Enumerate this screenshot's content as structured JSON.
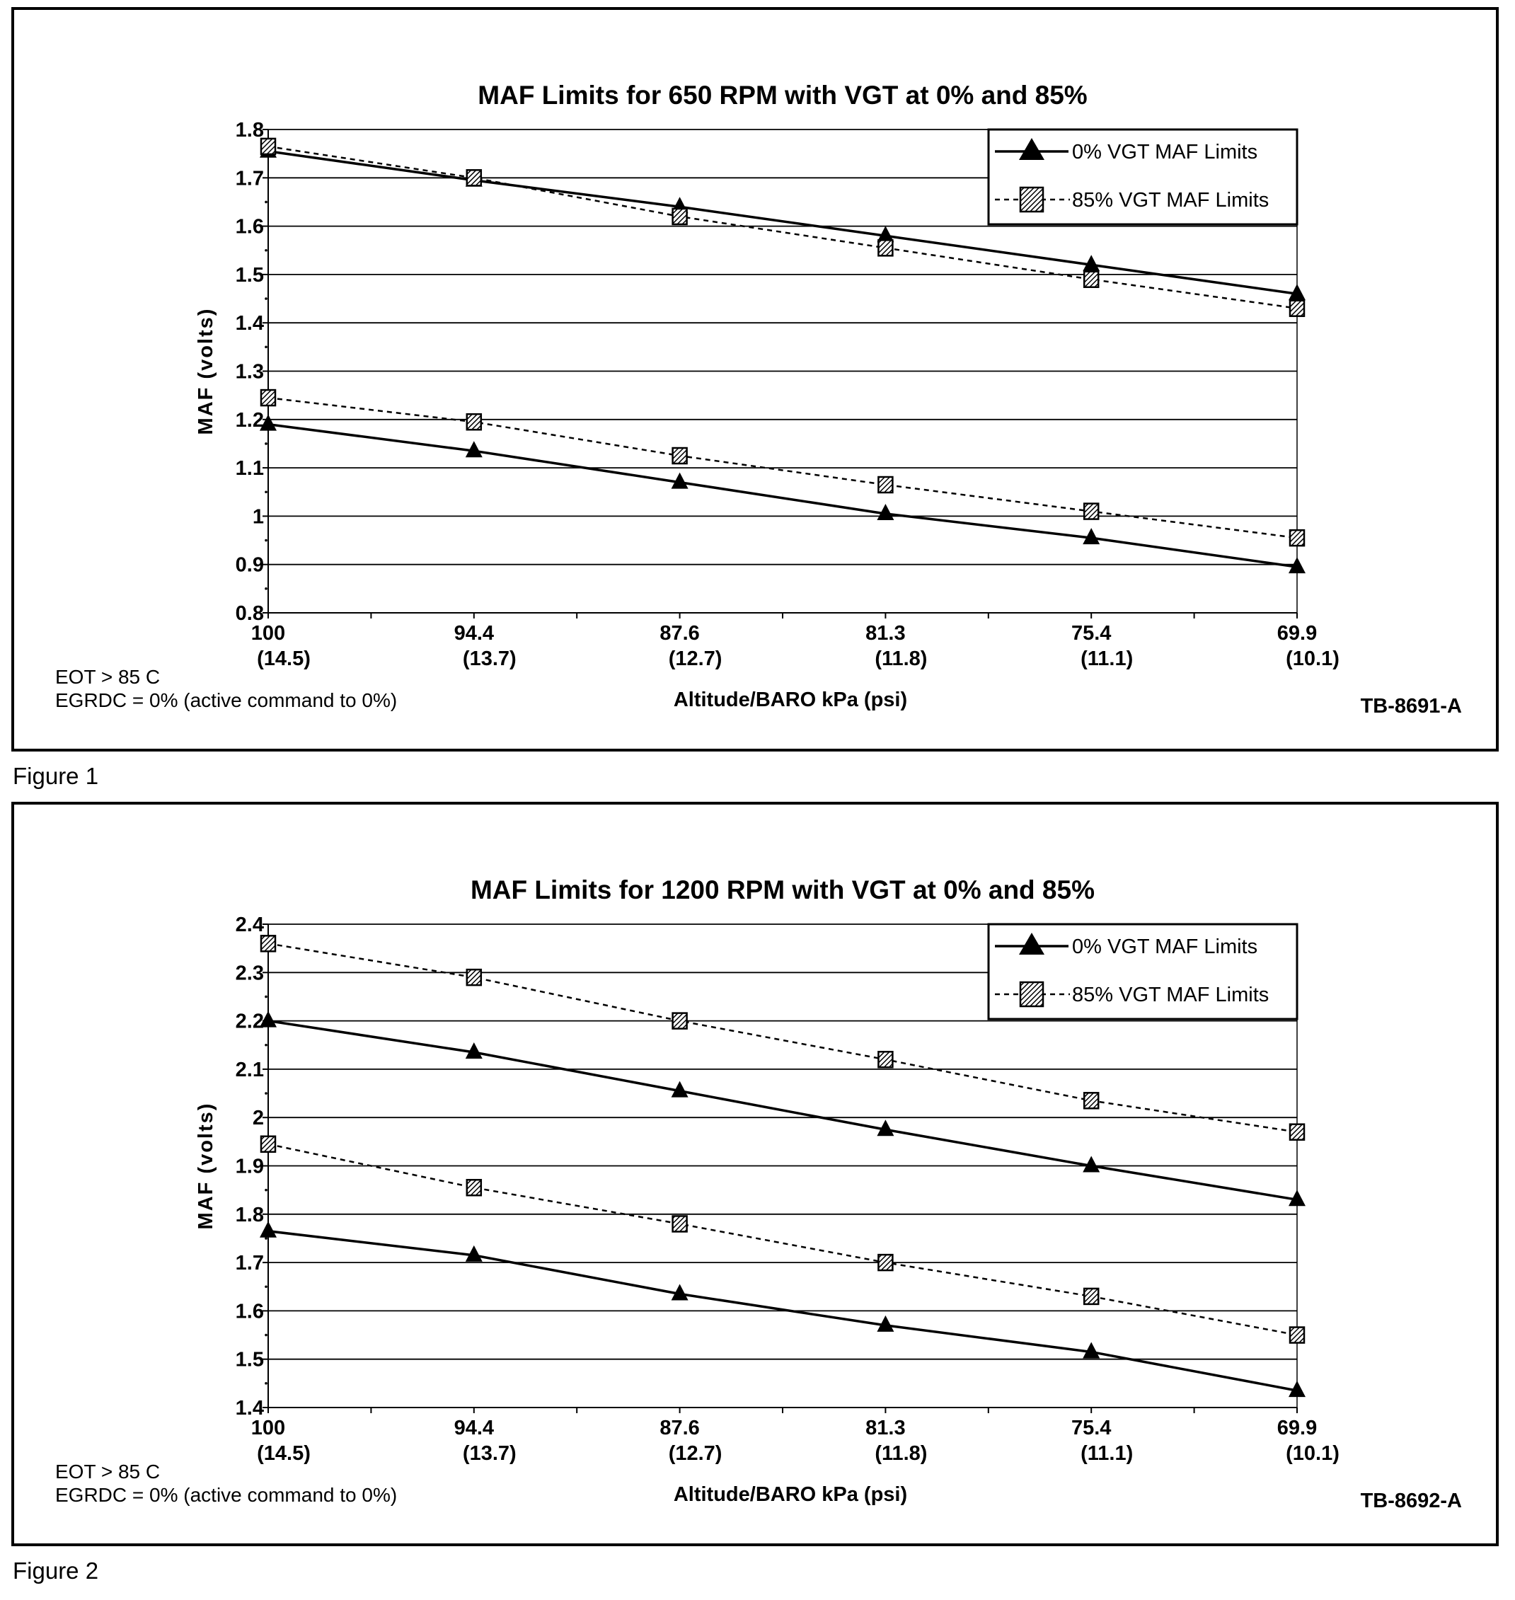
{
  "chart_data": [
    {
      "type": "line",
      "figure_label": "Figure 1",
      "title": "MAF Limits for 650 RPM with VGT at 0% and 85%",
      "ylabel": "MAF (volts)",
      "xlabel": "Altitude/BARO kPa (psi)",
      "code": "TB-8691-A",
      "notes": [
        "EOT > 85 C",
        "EGRDC = 0% (active command to 0%)"
      ],
      "categories": [
        "100",
        "94.4",
        "87.6",
        "81.3",
        "75.4",
        "69.9"
      ],
      "categories_psi": [
        "(14.5)",
        "(13.7)",
        "(12.7)",
        "(11.8)",
        "(11.1)",
        "(10.1)"
      ],
      "ylim": [
        0.8,
        1.8
      ],
      "yticks": [
        "0.8",
        "0.9",
        "1",
        "1.1",
        "1.2",
        "1.3",
        "1.4",
        "1.5",
        "1.6",
        "1.7",
        "1.8"
      ],
      "grid": true,
      "legend": {
        "placement": "top-right",
        "entries": [
          "0% VGT MAF Limits",
          "85% VGT MAF Limits"
        ]
      },
      "series": [
        {
          "name": "0% VGT MAF Limits (upper)",
          "style": "solid-triangle",
          "values": [
            1.755,
            1.695,
            1.64,
            1.58,
            1.52,
            1.46
          ]
        },
        {
          "name": "85% VGT MAF Limits (upper)",
          "style": "dashed-square",
          "values": [
            1.765,
            1.7,
            1.62,
            1.555,
            1.49,
            1.43
          ]
        },
        {
          "name": "0% VGT MAF Limits (lower)",
          "style": "solid-triangle",
          "values": [
            1.19,
            1.135,
            1.07,
            1.005,
            0.955,
            0.895
          ]
        },
        {
          "name": "85% VGT MAF Limits (lower)",
          "style": "dashed-square",
          "values": [
            1.245,
            1.195,
            1.125,
            1.065,
            1.01,
            0.955
          ]
        }
      ]
    },
    {
      "type": "line",
      "figure_label": "Figure 2",
      "title": "MAF Limits for 1200 RPM with VGT at 0% and 85%",
      "ylabel": "MAF (volts)",
      "xlabel": "Altitude/BARO kPa (psi)",
      "code": "TB-8692-A",
      "notes": [
        "EOT > 85 C",
        "EGRDC = 0% (active command to 0%)"
      ],
      "categories": [
        "100",
        "94.4",
        "87.6",
        "81.3",
        "75.4",
        "69.9"
      ],
      "categories_psi": [
        "(14.5)",
        "(13.7)",
        "(12.7)",
        "(11.8)",
        "(11.1)",
        "(10.1)"
      ],
      "ylim": [
        1.4,
        2.4
      ],
      "yticks": [
        "1.4",
        "1.5",
        "1.6",
        "1.7",
        "1.8",
        "1.9",
        "2",
        "2.1",
        "2.2",
        "2.3",
        "2.4"
      ],
      "grid": true,
      "legend": {
        "placement": "top-right",
        "entries": [
          "0% VGT MAF Limits",
          "85% VGT MAF Limits"
        ]
      },
      "series": [
        {
          "name": "85% VGT MAF Limits (upper)",
          "style": "dashed-square",
          "values": [
            2.36,
            2.29,
            2.2,
            2.12,
            2.035,
            1.97
          ]
        },
        {
          "name": "0% VGT MAF Limits (upper)",
          "style": "solid-triangle",
          "values": [
            2.2,
            2.135,
            2.055,
            1.975,
            1.9,
            1.83
          ]
        },
        {
          "name": "85% VGT MAF Limits (lower)",
          "style": "dashed-square",
          "values": [
            1.945,
            1.855,
            1.78,
            1.7,
            1.63,
            1.55
          ]
        },
        {
          "name": "0% VGT MAF Limits (lower)",
          "style": "solid-triangle",
          "values": [
            1.765,
            1.715,
            1.635,
            1.57,
            1.515,
            1.435
          ]
        }
      ]
    }
  ]
}
